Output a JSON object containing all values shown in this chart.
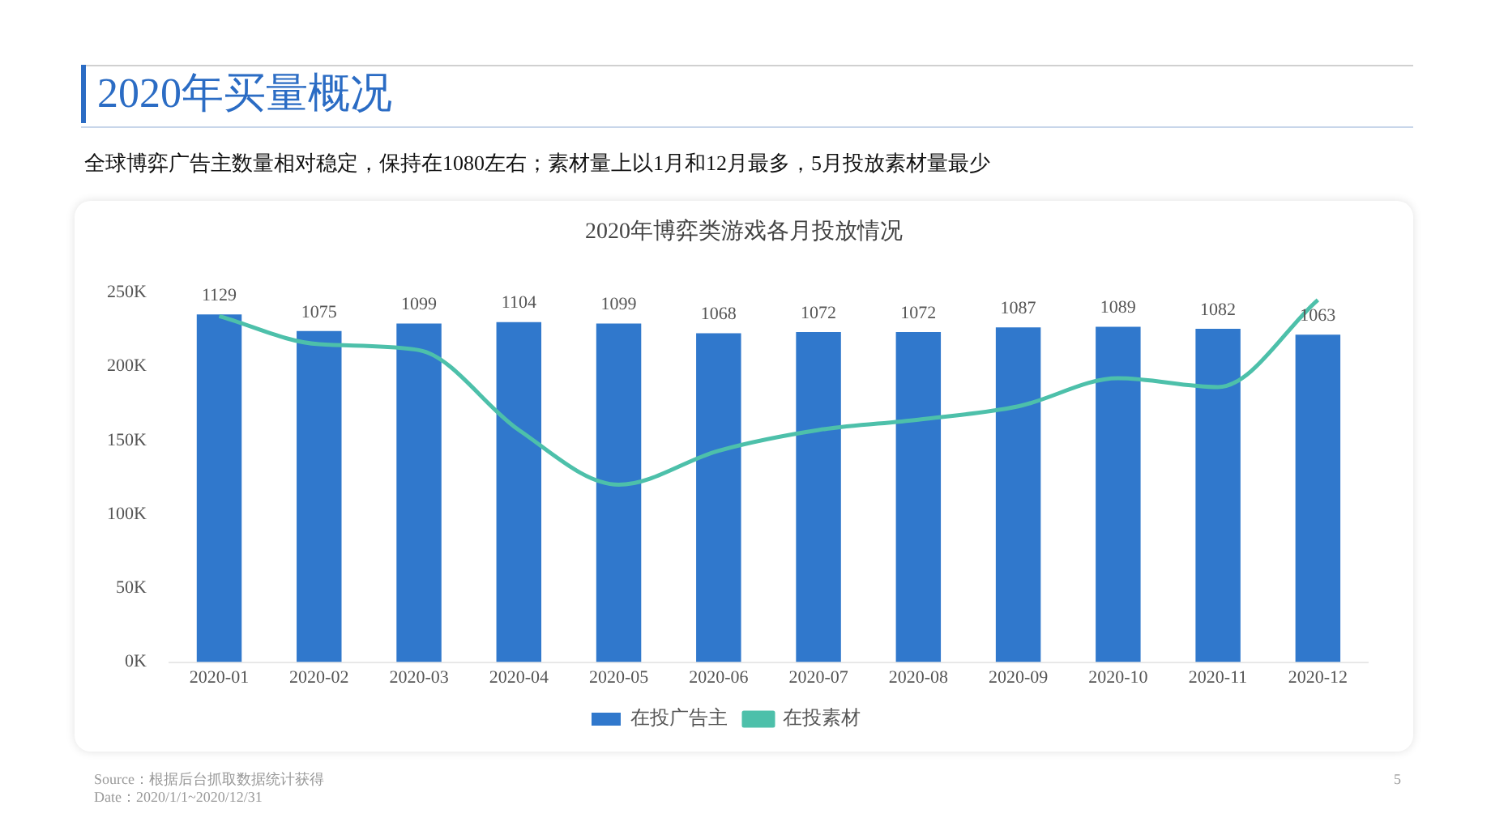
{
  "chart_data": {
    "type": "bar",
    "title": "2020年买量概况",
    "subtitle": "全球博弈广告主数量相对稳定，保持在1080左右；素材量上以1月和12月最多，5月投放素材量最少",
    "annotations": [
      "2020年博弈类游戏各月投放情况",
      "Source：根据后台抓取数据统计获得",
      "Date：2020/1/1~2020/12/31",
      "5"
    ],
    "categories": [
      "2020-01",
      "2020-02",
      "2020-03",
      "2020-04",
      "2020-05",
      "2020-06",
      "2020-07",
      "2020-08",
      "2020-09",
      "2020-10",
      "2020-11",
      "2020-12"
    ],
    "series": [
      {
        "name": "在投广告主",
        "axis": "y2",
        "color": "#3078cc",
        "values": [
          1129,
          1075,
          1099,
          1104,
          1099,
          1068,
          1072,
          1072,
          1087,
          1089,
          1082,
          1063
        ],
        "value_labels": [
          "1129",
          "1075",
          "1099",
          "1104",
          "1099",
          "1068",
          "1072",
          "1072",
          "1087",
          "1089",
          "1082",
          "1063"
        ]
      },
      {
        "name": "在投素材",
        "type": "line",
        "color": "#4dc0aa",
        "values": [
          234000,
          215000,
          211000,
          157000,
          120000,
          143000,
          157000,
          164000,
          173000,
          192000,
          186000,
          245000
        ]
      }
    ],
    "ylim": [
      0,
      250000
    ],
    "yticks": [
      {
        "value": 0,
        "label": "0K"
      },
      {
        "value": 50000,
        "label": "50K"
      },
      {
        "value": 100000,
        "label": "100K"
      },
      {
        "value": 150000,
        "label": "150K"
      },
      {
        "value": 200000,
        "label": "200K"
      },
      {
        "value": 250000,
        "label": "250K"
      }
    ],
    "legend": "bottom",
    "marker": "none",
    "grid": false
  }
}
